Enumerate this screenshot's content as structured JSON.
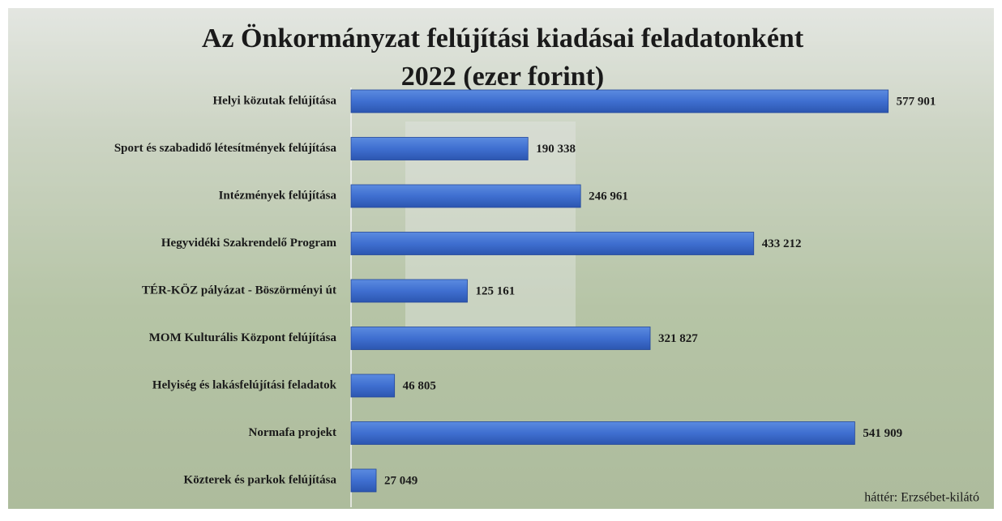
{
  "chart_data": {
    "type": "barh",
    "title": [
      "Az Önkormányzat felújítási kiadásai feladatonként",
      "2022 (ezer forint)"
    ],
    "categories": [
      "Helyi közutak felújítása",
      "Sport és szabadidő létesítmények felújítása",
      "Intézmények felújítása",
      "Hegyvidéki Szakrendelő Program",
      "TÉR-KÖZ pályázat - Böszörményi út",
      "MOM Kulturális Központ felújítása",
      "Helyiség és lakásfelújítási feladatok",
      "Normafa projekt",
      "Közterek és parkok felújítása"
    ],
    "values": [
      577901,
      190338,
      246961,
      433212,
      125161,
      321827,
      46805,
      541909,
      27049
    ],
    "value_labels": [
      "577 901",
      "190 338",
      "246 961",
      "433 212",
      "125 161",
      "321 827",
      "46 805",
      "541 909",
      "27 049"
    ],
    "color": "#4472c4",
    "xlim": [
      0,
      600000
    ],
    "annotation": "háttér: Erzsébet-kilátó"
  }
}
